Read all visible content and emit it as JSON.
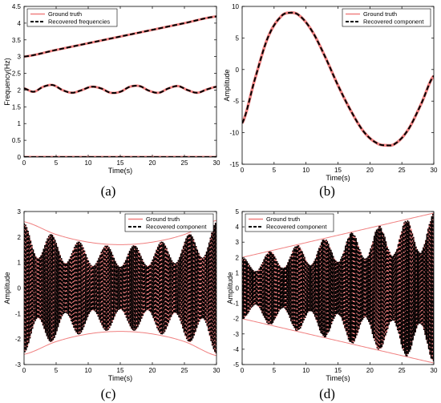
{
  "chart_data": [
    {
      "type": "line",
      "panel_label": "(a)",
      "xlabel": "Time(s)",
      "ylabel": "Frequency(Hz)",
      "xlim": [
        0,
        30
      ],
      "ylim": [
        0,
        4.5
      ],
      "xticks": [
        0,
        5,
        10,
        15,
        20,
        25,
        30
      ],
      "yticks": [
        0,
        0.5,
        1,
        1.5,
        2,
        2.5,
        3,
        3.5,
        4,
        4.5
      ],
      "legend_position": "top-left",
      "legend": [
        "Ground truth",
        "Recovered frequencies"
      ],
      "series": [
        {
          "name": "Ground truth",
          "color": "#f08080",
          "style": "solid",
          "x": [
            0,
            30
          ],
          "curves": [
            {
              "x": [
                0,
                5,
                10,
                15,
                20,
                25,
                30
              ],
              "y": [
                3.0,
                3.2,
                3.4,
                3.6,
                3.8,
                4.0,
                4.2
              ]
            },
            {
              "x": [
                0,
                1.5,
                3,
                4.5,
                6,
                7.5,
                9,
                10.5,
                12,
                13.5,
                15,
                16.5,
                18,
                19.5,
                21,
                22.5,
                24,
                25.5,
                27,
                28.5,
                30
              ],
              "y": [
                2.05,
                1.95,
                2.1,
                2.15,
                2.0,
                1.92,
                2.0,
                2.1,
                2.05,
                1.92,
                1.95,
                2.1,
                2.12,
                1.98,
                1.92,
                2.05,
                2.12,
                2.0,
                1.92,
                2.02,
                2.1
              ]
            },
            {
              "x": [
                0,
                30
              ],
              "y": [
                0,
                0
              ]
            }
          ]
        },
        {
          "name": "Recovered frequencies",
          "color": "#000000",
          "style": "dashed"
        }
      ]
    },
    {
      "type": "line",
      "panel_label": "(b)",
      "xlabel": "Time(s)",
      "ylabel": "Amplitude",
      "xlim": [
        0,
        30
      ],
      "ylim": [
        -15,
        10
      ],
      "xticks": [
        0,
        5,
        10,
        15,
        20,
        25,
        30
      ],
      "yticks": [
        -15,
        -10,
        -5,
        0,
        5,
        10
      ],
      "legend_position": "top-right",
      "legend": [
        "Ground truth",
        "Recovered component"
      ],
      "series": [
        {
          "name": "Ground truth",
          "color": "#f08080",
          "style": "solid",
          "x": [
            0,
            2,
            4,
            6,
            7.5,
            9,
            11,
            13,
            15,
            17,
            19,
            21,
            22.5,
            24,
            26,
            28,
            30
          ],
          "y": [
            -8.5,
            -1.5,
            5.0,
            8.3,
            9.0,
            8.5,
            6.0,
            2.0,
            -2.5,
            -6.5,
            -9.8,
            -11.6,
            -12.0,
            -11.7,
            -9.5,
            -5.5,
            -1.0
          ]
        },
        {
          "name": "Recovered component",
          "color": "#000000",
          "style": "dashed"
        }
      ]
    },
    {
      "type": "line",
      "panel_label": "(c)",
      "xlabel": "Time(s)",
      "ylabel": "Amplitude",
      "xlim": [
        0,
        30
      ],
      "ylim": [
        -3,
        3
      ],
      "xticks": [
        0,
        5,
        10,
        15,
        20,
        25,
        30
      ],
      "yticks": [
        -3,
        -2,
        -1,
        0,
        1,
        2,
        3
      ],
      "legend_position": "top-right",
      "legend": [
        "Ground truth",
        "Recovered component"
      ],
      "envelope": {
        "x": [
          0,
          5,
          10,
          15,
          20,
          25,
          30
        ],
        "amplitude": [
          2.6,
          2.1,
          1.8,
          1.7,
          1.8,
          2.1,
          2.65
        ]
      },
      "series": [
        {
          "name": "Ground truth",
          "color": "#f08080",
          "style": "solid"
        },
        {
          "name": "Recovered component",
          "color": "#000000",
          "style": "dashed"
        }
      ]
    },
    {
      "type": "line",
      "panel_label": "(d)",
      "xlabel": "Time(s)",
      "ylabel": "Amplitude",
      "xlim": [
        0,
        30
      ],
      "ylim": [
        -5,
        5
      ],
      "xticks": [
        0,
        5,
        10,
        15,
        20,
        25,
        30
      ],
      "yticks": [
        -5,
        -4,
        -3,
        -2,
        -1,
        0,
        1,
        2,
        3,
        4,
        5
      ],
      "legend_position": "top-left",
      "legend": [
        "Ground truth",
        "Recovered component"
      ],
      "envelope": {
        "x": [
          0,
          30
        ],
        "amplitude": [
          2.0,
          4.9
        ]
      },
      "series": [
        {
          "name": "Ground truth",
          "color": "#f08080",
          "style": "solid"
        },
        {
          "name": "Recovered component",
          "color": "#000000",
          "style": "dashed"
        }
      ]
    }
  ]
}
